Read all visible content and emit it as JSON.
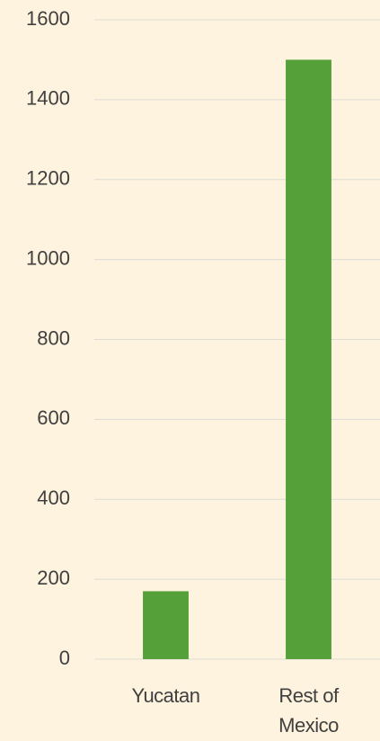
{
  "chart_data": {
    "type": "bar",
    "categories": [
      "Yucatan",
      "Rest of Mexico"
    ],
    "values": [
      170,
      1500
    ],
    "color": "#55a038",
    "ylim": [
      0,
      1600
    ],
    "yticks": [
      0,
      200,
      400,
      600,
      800,
      1000,
      1200,
      1400,
      1600
    ],
    "grid": true
  }
}
